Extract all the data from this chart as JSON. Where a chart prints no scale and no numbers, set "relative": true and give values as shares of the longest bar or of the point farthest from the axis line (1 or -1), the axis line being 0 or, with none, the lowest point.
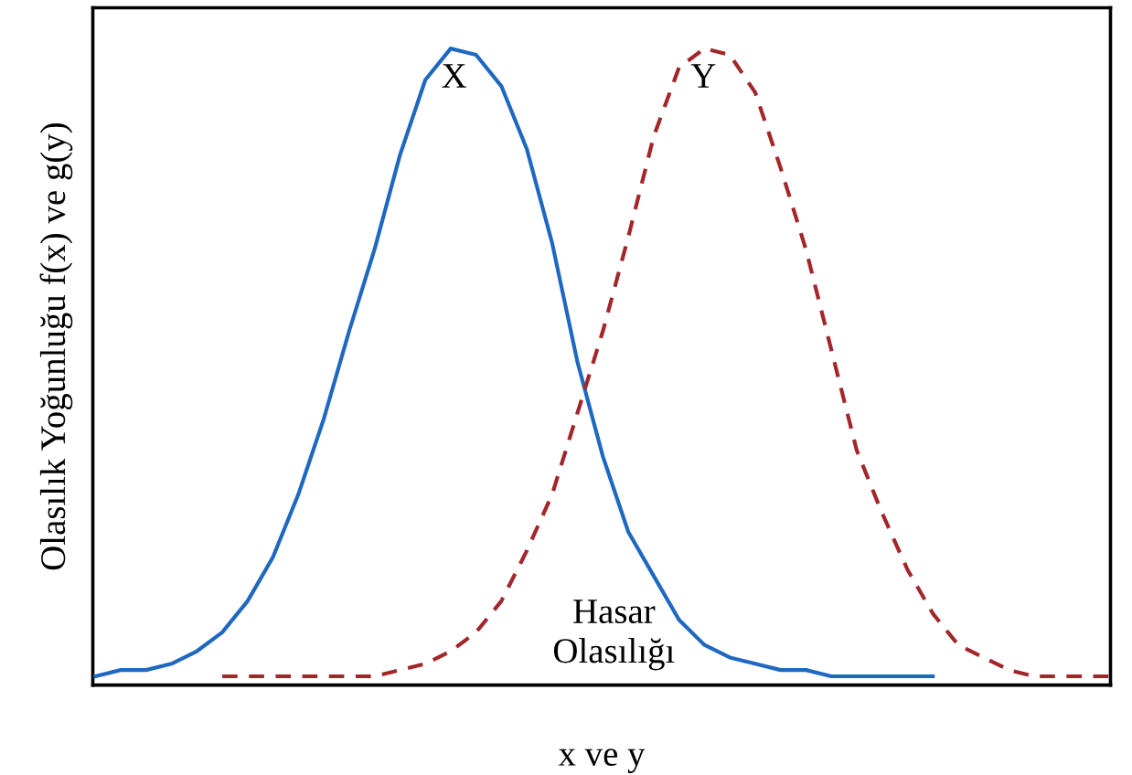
{
  "chart_data": {
    "type": "line",
    "relative": true,
    "xlabel": "x ve y",
    "ylabel": "Olasılık Yoğunluğu f(x) ve g(y)",
    "categories": [
      null,
      null,
      null,
      null,
      null,
      null,
      null,
      null,
      null,
      null,
      null,
      null,
      null,
      null,
      null,
      null,
      null,
      null,
      null,
      null,
      null,
      null,
      null,
      null,
      null,
      null,
      null,
      null,
      null,
      null,
      null,
      null,
      null,
      null,
      null,
      null,
      null,
      null,
      null,
      null,
      null
    ],
    "series": [
      {
        "color": "#1f68c1",
        "line_style": "solid",
        "values": [
          0.0,
          0.01,
          0.01,
          0.02,
          0.04,
          0.07,
          0.12,
          0.19,
          0.29,
          0.41,
          0.55,
          0.68,
          0.83,
          0.95,
          1.0,
          0.99,
          0.94,
          0.84,
          0.69,
          0.5,
          0.35,
          0.23,
          0.16,
          0.09,
          0.05,
          0.03,
          0.02,
          0.01,
          0.01,
          0.0,
          0.0,
          0.0,
          0.0,
          0.0,
          null,
          null,
          null,
          null,
          null,
          null,
          null
        ]
      },
      {
        "color": "#a3262a",
        "line_style": "dashed",
        "values": [
          null,
          null,
          null,
          null,
          null,
          0.0,
          0.0,
          0.0,
          0.0,
          0.0,
          0.0,
          0.0,
          0.01,
          0.02,
          0.04,
          0.07,
          0.12,
          0.2,
          0.29,
          0.42,
          0.55,
          0.7,
          0.86,
          0.97,
          1.0,
          0.99,
          0.93,
          0.81,
          0.68,
          0.52,
          0.36,
          0.26,
          0.17,
          0.1,
          0.05,
          0.03,
          0.01,
          0.0,
          0.0,
          0.0,
          0.0
        ]
      }
    ],
    "annotations": [
      "X",
      "Y",
      "Hasar\nOlasılığı"
    ],
    "legend": false,
    "marker": "none"
  }
}
